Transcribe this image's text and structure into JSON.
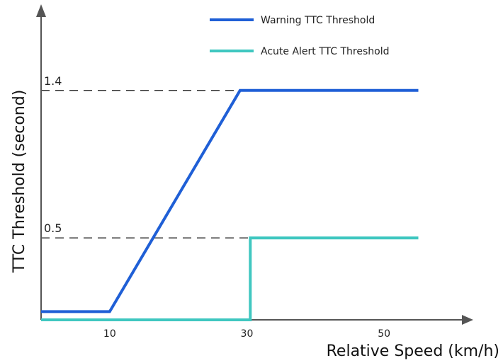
{
  "chart_data": {
    "type": "line",
    "title": "",
    "xlabel": "Relative Speed (km/h)",
    "ylabel": "TTC Threshold (second)",
    "xlim": [
      0,
      63
    ],
    "ylim": [
      0,
      1.9
    ],
    "x_ticks": [
      {
        "value": 10,
        "label": "10"
      },
      {
        "value": 30,
        "label": "30"
      },
      {
        "value": 50,
        "label": "50"
      }
    ],
    "y_ticks": [
      {
        "value": 1.4,
        "label": "1.4"
      },
      {
        "value": 0.5,
        "label": "0.5"
      }
    ],
    "grid": false,
    "legend_position": "top-right",
    "series": [
      {
        "name": "Warning TTC Threshold",
        "color": "#1f5fd6",
        "x": [
          0,
          10,
          29,
          55
        ],
        "y": [
          0.05,
          0.05,
          1.4,
          1.4
        ]
      },
      {
        "name": "Acute Alert TTC Threshold",
        "color": "#3fc7c0",
        "x": [
          0,
          30.5,
          30.5,
          55
        ],
        "y": [
          0.0,
          0.0,
          0.5,
          0.5
        ]
      }
    ]
  }
}
